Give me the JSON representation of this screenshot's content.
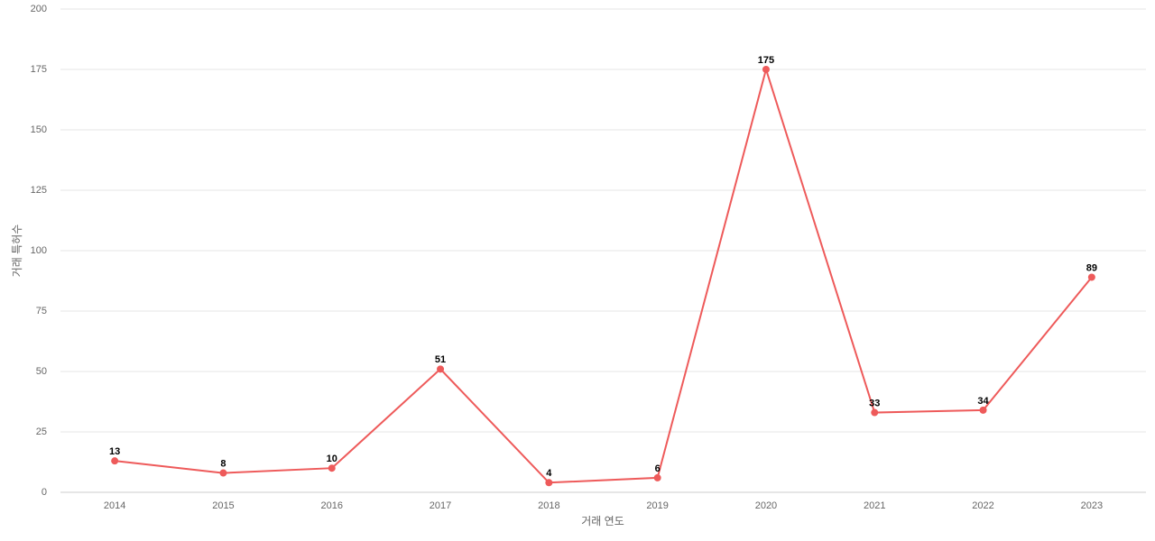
{
  "chart_data": {
    "type": "line",
    "x_label": "거래 연도",
    "y_label": "거래 특허수",
    "categories": [
      "2014",
      "2015",
      "2016",
      "2017",
      "2018",
      "2019",
      "2020",
      "2021",
      "2022",
      "2023"
    ],
    "series": [
      {
        "name": "거래 특허수",
        "color": "#ee5a5a",
        "values": [
          13,
          8,
          10,
          51,
          4,
          6,
          175,
          33,
          34,
          89
        ]
      }
    ],
    "ylim": [
      0,
      200
    ],
    "yticks": [
      0,
      25,
      50,
      75,
      100,
      125,
      150,
      175,
      200
    ],
    "grid": true
  }
}
